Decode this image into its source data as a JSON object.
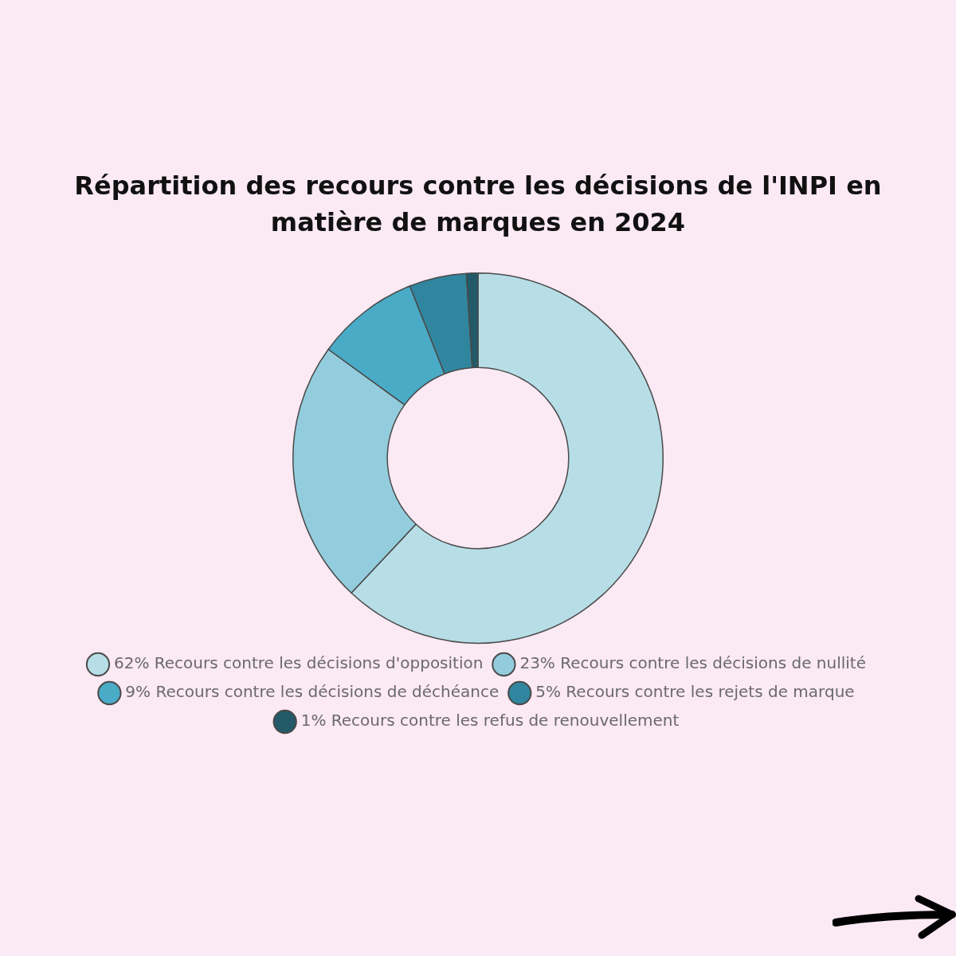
{
  "chart_data": {
    "type": "donut",
    "title": "Répartition des recours contre les décisions de l'INPI en matière de marques en 2024",
    "categories": [
      "Recours contre les décisions d'opposition",
      "Recours contre les décisions de nullité",
      "Recours contre les décisions de déchéance",
      "Recours contre les rejets de marque",
      "Recours contre les refus de renouvellement"
    ],
    "values": [
      62,
      23,
      9,
      5,
      1
    ],
    "value_labels": [
      "62%",
      "23%",
      "9%",
      "5%",
      "1%"
    ],
    "colors": [
      "#b7dee7",
      "#93cddd",
      "#4aabc6",
      "#31869f",
      "#225a69"
    ],
    "legend": "bottom"
  }
}
